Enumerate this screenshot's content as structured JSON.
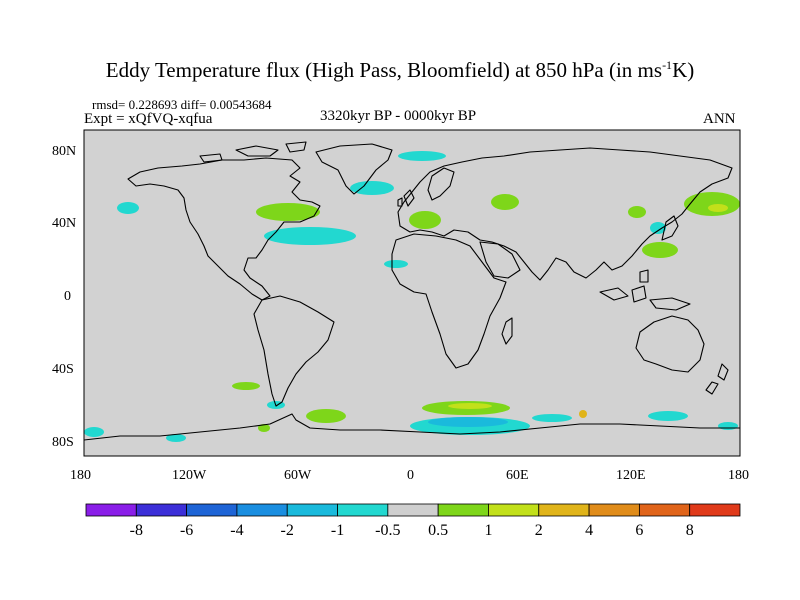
{
  "title": {
    "main": "Eddy Temperature flux (High Pass, Bloomfield) at 850 hPa (in ms",
    "sup": "-1",
    "end": "K)"
  },
  "stats": "rmsd= 0.228693  diff= 0.00543684",
  "expt": "Expt = xQfVQ-xqfua",
  "period": "3320kyr BP - 0000kyr BP",
  "season": "ANN",
  "axes": {
    "y_ticks": [
      "80N",
      "40N",
      "0",
      "40S",
      "80S"
    ],
    "x_ticks": [
      "180",
      "120W",
      "60W",
      "0",
      "60E",
      "120E",
      "180"
    ]
  },
  "colorbar": {
    "labels": [
      "-8",
      "-6",
      "-4",
      "-2",
      "-1",
      "-0.5",
      "0.5",
      "1",
      "2",
      "4",
      "6",
      "8"
    ],
    "colors": [
      "#8a1ee8",
      "#3c2fd8",
      "#1e64d6",
      "#1a8ee0",
      "#1abadc",
      "#22d8d0",
      "#cfcfcf",
      "#7ed61a",
      "#c2e01a",
      "#e0b41a",
      "#e08c1a",
      "#e0641a",
      "#e03a1a"
    ]
  },
  "map_colors": {
    "ocean": "#d2d2d2",
    "coast": "#000000",
    "cyan": "#22d8d0",
    "blue": "#1abadc",
    "green": "#7ed61a",
    "yellow": "#c2e01a",
    "orange": "#e0b41a"
  }
}
